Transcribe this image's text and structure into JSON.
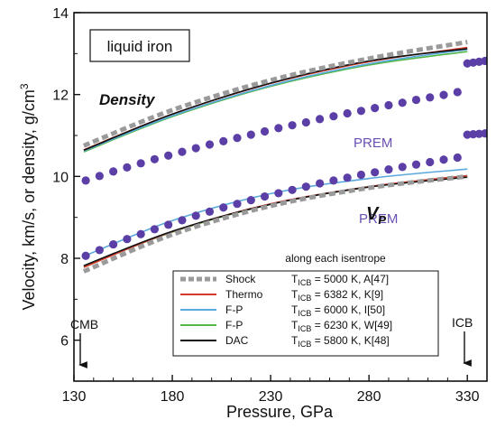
{
  "chart_data": {
    "type": "line",
    "xlabel": "Pressure, GPa",
    "ylabel_parts": [
      "Velocity, km/s, or density, g/cm",
      "3"
    ],
    "xlim": [
      130,
      340
    ],
    "ylim": [
      5.0,
      14.0
    ],
    "xticks": [
      130,
      180,
      230,
      280,
      330
    ],
    "yticks": [
      6,
      8,
      10,
      12,
      14
    ],
    "inset_label": "liquid iron",
    "legend_heading": "along each isentrope",
    "annotations": {
      "density": "Density",
      "vp_main": "V",
      "vp_sub": "P",
      "prem_density": "PREM",
      "prem_vp": "PREM",
      "cmb": "CMB",
      "icb": "ICB"
    },
    "colors": {
      "shock": "#9a9a9a",
      "thermo": "#d63a2a",
      "fp_blue": "#5aa9dc",
      "fp_green": "#52b748",
      "dac": "#111111",
      "prem": "#5b3fa6"
    },
    "series": [
      {
        "key": "shock",
        "name": "Shock",
        "condition_main": "T",
        "condition_sub": "ICB",
        "condition_rest": " = 5000 K, A[47]",
        "style": "dashed",
        "density": {
          "x": [
            135,
            180,
            230,
            280,
            330
          ],
          "y": [
            10.75,
            11.62,
            12.35,
            12.88,
            13.28
          ]
        },
        "vp": {
          "x": [
            135,
            180,
            230,
            280,
            330
          ],
          "y": [
            7.68,
            8.58,
            9.28,
            9.72,
            10.0
          ]
        }
      },
      {
        "key": "thermo",
        "name": "Thermo",
        "condition_main": "T",
        "condition_sub": "ICB",
        "condition_rest": " = 6382 K, K[9]",
        "style": "solid",
        "density": {
          "x": [
            135,
            180,
            230,
            280,
            330
          ],
          "y": [
            10.65,
            11.52,
            12.27,
            12.8,
            13.15
          ]
        },
        "vp": {
          "x": [
            135,
            180,
            230,
            280,
            330
          ],
          "y": [
            7.78,
            8.65,
            9.33,
            9.75,
            10.02
          ]
        }
      },
      {
        "key": "fp_blue",
        "name": "F-P",
        "condition_main": "T",
        "condition_sub": "ICB",
        "condition_rest": " = 6000 K, I[50]",
        "style": "solid",
        "density": {
          "x": [
            135,
            180,
            230,
            280,
            330
          ],
          "y": [
            10.62,
            11.48,
            12.22,
            12.75,
            13.1
          ]
        },
        "vp": {
          "x": [
            135,
            180,
            230,
            280,
            330
          ],
          "y": [
            8.05,
            8.92,
            9.58,
            9.95,
            10.18
          ]
        }
      },
      {
        "key": "fp_green",
        "name": "F-P",
        "condition_main": "T",
        "condition_sub": "ICB",
        "condition_rest": " = 6230 K, W[49]",
        "style": "solid",
        "density": {
          "x": [
            135,
            180,
            230,
            280,
            330
          ],
          "y": [
            10.6,
            11.46,
            12.2,
            12.72,
            13.05
          ]
        },
        "vp": {
          "x": [
            135,
            180,
            230,
            280,
            330
          ],
          "y": [
            7.8,
            8.64,
            9.32,
            9.74,
            10.0
          ]
        }
      },
      {
        "key": "dac",
        "name": "DAC",
        "condition_main": "T",
        "condition_sub": "ICB",
        "condition_rest": " = 5800 K, K[48]",
        "style": "solid",
        "density": {
          "x": [
            135,
            180,
            230,
            280,
            330
          ],
          "y": [
            10.64,
            11.52,
            12.28,
            12.82,
            13.12
          ]
        },
        "vp": {
          "x": [
            135,
            180,
            230,
            280,
            330
          ],
          "y": [
            7.82,
            8.66,
            9.32,
            9.74,
            9.98
          ]
        }
      }
    ],
    "prem": {
      "name": "PREM",
      "density": {
        "x": [
          136,
          143,
          150,
          157,
          164,
          171,
          178,
          185,
          192,
          199,
          206,
          213,
          220,
          227,
          234,
          241,
          248,
          255,
          262,
          269,
          276,
          283,
          290,
          297,
          304,
          311,
          318,
          325
        ],
        "y": [
          9.9,
          10.01,
          10.12,
          10.22,
          10.32,
          10.42,
          10.51,
          10.6,
          10.69,
          10.78,
          10.86,
          10.94,
          11.02,
          11.1,
          11.18,
          11.25,
          11.32,
          11.4,
          11.47,
          11.54,
          11.6,
          11.67,
          11.74,
          11.8,
          11.87,
          11.93,
          11.99,
          12.06
        ]
      },
      "vp": {
        "x": [
          136,
          143,
          150,
          157,
          164,
          171,
          178,
          185,
          192,
          199,
          206,
          213,
          220,
          227,
          234,
          241,
          248,
          255,
          262,
          269,
          276,
          283,
          290,
          297,
          304,
          311,
          318,
          325
        ],
        "y": [
          8.06,
          8.2,
          8.34,
          8.47,
          8.59,
          8.71,
          8.82,
          8.93,
          9.04,
          9.14,
          9.24,
          9.33,
          9.42,
          9.51,
          9.59,
          9.67,
          9.75,
          9.83,
          9.9,
          9.97,
          10.04,
          10.1,
          10.17,
          10.23,
          10.29,
          10.35,
          10.41,
          10.46
        ]
      },
      "inner_core_density": {
        "x": [
          330,
          333,
          336,
          339
        ],
        "y": [
          12.76,
          12.78,
          12.8,
          12.82
        ]
      },
      "inner_core_vp": {
        "x": [
          330,
          333,
          336,
          339
        ],
        "y": [
          11.02,
          11.03,
          11.04,
          11.05
        ]
      }
    }
  }
}
